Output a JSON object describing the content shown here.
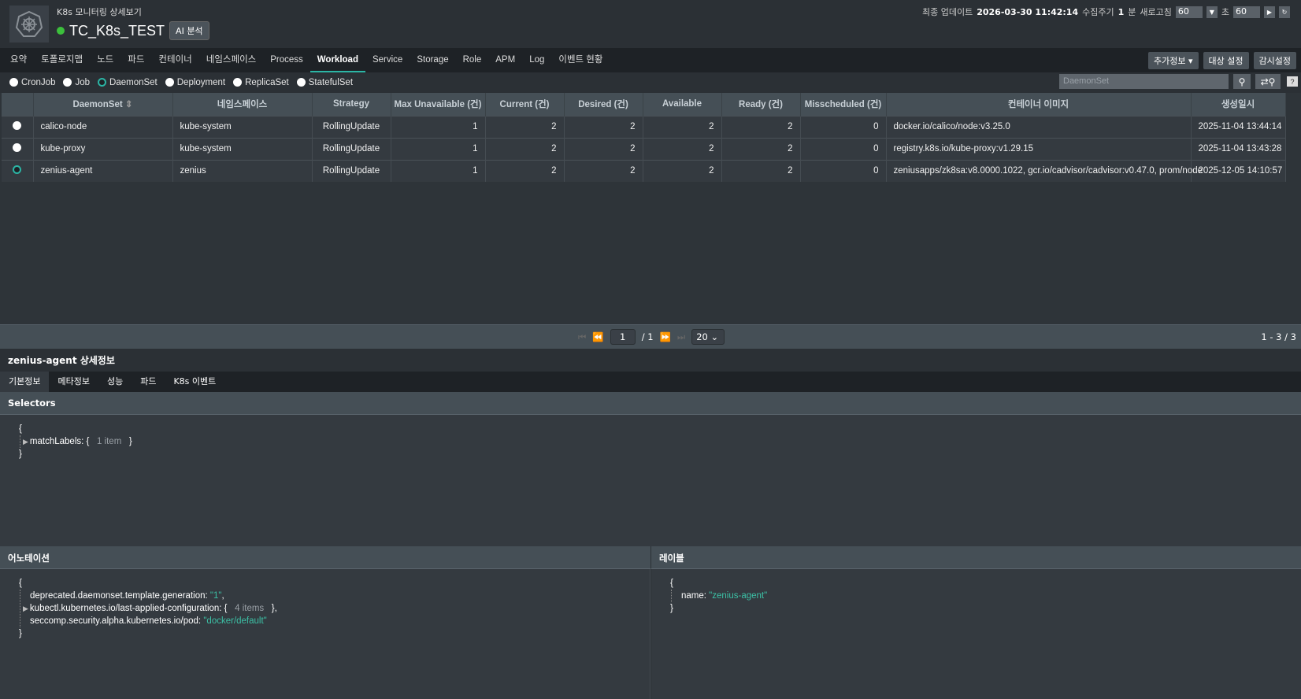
{
  "header": {
    "subtitle": "K8s 모니터링 상세보기",
    "title": "TC_K8s_TEST",
    "ai_button": "AI 분석",
    "status_color": "#3cc03c",
    "last_update_label": "최종 업데이트",
    "last_update": "2026-03-30 11:42:14",
    "collect_label": "수집주기",
    "collect_value": "1",
    "collect_unit": "분",
    "refresh_label": "새로고침",
    "refresh_select": "60",
    "sec_label": "초",
    "sec_value": "60"
  },
  "nav": {
    "tabs": [
      "요약",
      "토폴로지맵",
      "노드",
      "파드",
      "컨테이너",
      "네임스페이스",
      "Process",
      "Workload",
      "Service",
      "Storage",
      "Role",
      "APM",
      "Log",
      "이벤트 현황"
    ],
    "active": "Workload",
    "buttons": [
      "추가정보",
      "대상 설정",
      "감시설정"
    ]
  },
  "filter": {
    "options": [
      "CronJob",
      "Job",
      "DaemonSet",
      "Deployment",
      "ReplicaSet",
      "StatefulSet"
    ],
    "selected": "DaemonSet",
    "search_placeholder": "DaemonSet"
  },
  "table": {
    "columns": [
      "DaemonSet",
      "네임스페이스",
      "Strategy",
      "Max Unavailable (건)",
      "Current (건)",
      "Desired (건)",
      "Available",
      "Ready (건)",
      "Misscheduled (건)",
      "컨테이너 이미지",
      "생성일시"
    ],
    "rows": [
      {
        "selected": false,
        "cells": [
          "calico-node",
          "kube-system",
          "RollingUpdate",
          "1",
          "2",
          "2",
          "2",
          "2",
          "0",
          "docker.io/calico/node:v3.25.0",
          "2025-11-04 13:44:14"
        ]
      },
      {
        "selected": false,
        "cells": [
          "kube-proxy",
          "kube-system",
          "RollingUpdate",
          "1",
          "2",
          "2",
          "2",
          "2",
          "0",
          "registry.k8s.io/kube-proxy:v1.29.15",
          "2025-11-04 13:43:28"
        ]
      },
      {
        "selected": true,
        "cells": [
          "zenius-agent",
          "zenius",
          "RollingUpdate",
          "1",
          "2",
          "2",
          "2",
          "2",
          "0",
          "zeniusapps/zk8sa:v8.0000.1022, gcr.io/cadvisor/cadvisor:v0.47.0, prom/node",
          "2025-12-05 14:10:57"
        ]
      }
    ]
  },
  "pager": {
    "page": "1",
    "total": "/ 1",
    "page_size": "20",
    "range": "1 - 3 / 3"
  },
  "detail": {
    "title": "zenius-agent 상세정보",
    "tabs": [
      "기본정보",
      "메타정보",
      "성능",
      "파드",
      "K8s 이벤트"
    ],
    "selectors_title": "Selectors",
    "selectors": {
      "key": "matchLabels:",
      "count": "1 item"
    },
    "annotations_title": "어노테이션",
    "annotations": {
      "k1": "deprecated.daemonset.template.generation:",
      "v1": "\"1\"",
      "k2": "kubectl.kubernetes.io/last-applied-configuration:",
      "c2": "4 items",
      "k3": "seccomp.security.alpha.kubernetes.io/pod:",
      "v3": "\"docker/default\""
    },
    "labels_title": "레이블",
    "labels": {
      "k1": "name:",
      "v1": "\"zenius-agent\""
    }
  }
}
